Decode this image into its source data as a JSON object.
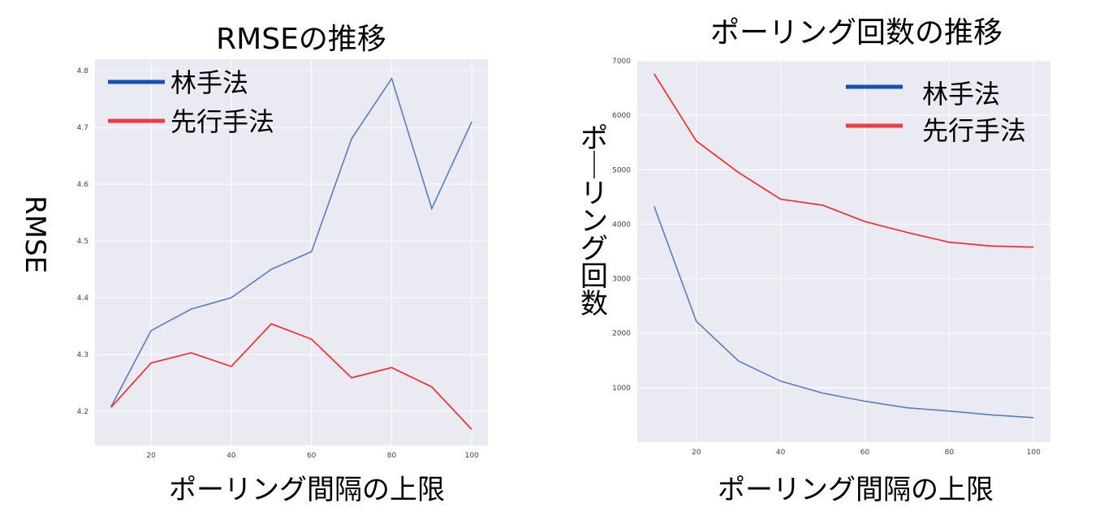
{
  "chart_data": [
    {
      "type": "line",
      "title": "RMSEの推移",
      "xlabel": "ポーリング間隔の上限",
      "ylabel": "RMSE",
      "x": [
        10,
        20,
        30,
        40,
        50,
        60,
        70,
        80,
        90,
        100
      ],
      "xticks": [
        "20",
        "40",
        "60",
        "80",
        "100"
      ],
      "xtick_values": [
        20,
        40,
        60,
        80,
        100
      ],
      "yticks": [
        "4.2",
        "4.3",
        "4.4",
        "4.5",
        "4.6",
        "4.7",
        "4.8"
      ],
      "ytick_values": [
        4.2,
        4.3,
        4.4,
        4.5,
        4.6,
        4.7,
        4.8
      ],
      "xlim": [
        6,
        104
      ],
      "ylim": [
        4.14,
        4.82
      ],
      "grid": true,
      "legend_position": "top-left",
      "series": [
        {
          "name": "林手法",
          "color": "#5a7dbf",
          "legend_color": "#1450b4",
          "values": [
            4.208,
            4.342,
            4.38,
            4.4,
            4.45,
            4.481,
            4.68,
            4.786,
            4.557,
            4.71
          ]
        },
        {
          "name": "先行手法",
          "color": "#ff2020",
          "legend_color": "#e84040",
          "values": [
            4.207,
            4.285,
            4.303,
            4.279,
            4.354,
            4.327,
            4.259,
            4.277,
            4.243,
            4.168
          ]
        }
      ]
    },
    {
      "type": "line",
      "title": "ポーリング回数の推移",
      "xlabel": "ポーリング間隔の上限",
      "ylabel": "ポーリング回数",
      "x": [
        10,
        20,
        30,
        40,
        50,
        60,
        70,
        80,
        90,
        100
      ],
      "xticks": [
        "20",
        "40",
        "60",
        "80",
        "100"
      ],
      "xtick_values": [
        20,
        40,
        60,
        80,
        100
      ],
      "yticks": [
        "1000",
        "2000",
        "3000",
        "4000",
        "5000",
        "6000",
        "7000"
      ],
      "ytick_values": [
        1000,
        2000,
        3000,
        4000,
        5000,
        6000,
        7000
      ],
      "xlim": [
        6,
        104
      ],
      "ylim": [
        0,
        7000
      ],
      "grid": true,
      "legend_position": "top-right",
      "series": [
        {
          "name": "林手法",
          "color": "#5a7dbf",
          "legend_color": "#1450b4",
          "values": [
            4330,
            2220,
            1490,
            1120,
            900,
            750,
            630,
            570,
            500,
            450
          ]
        },
        {
          "name": "先行手法",
          "color": "#ff2020",
          "legend_color": "#e84040",
          "values": [
            6760,
            5530,
            4950,
            4460,
            4350,
            4050,
            3850,
            3670,
            3600,
            3580
          ]
        }
      ]
    }
  ]
}
